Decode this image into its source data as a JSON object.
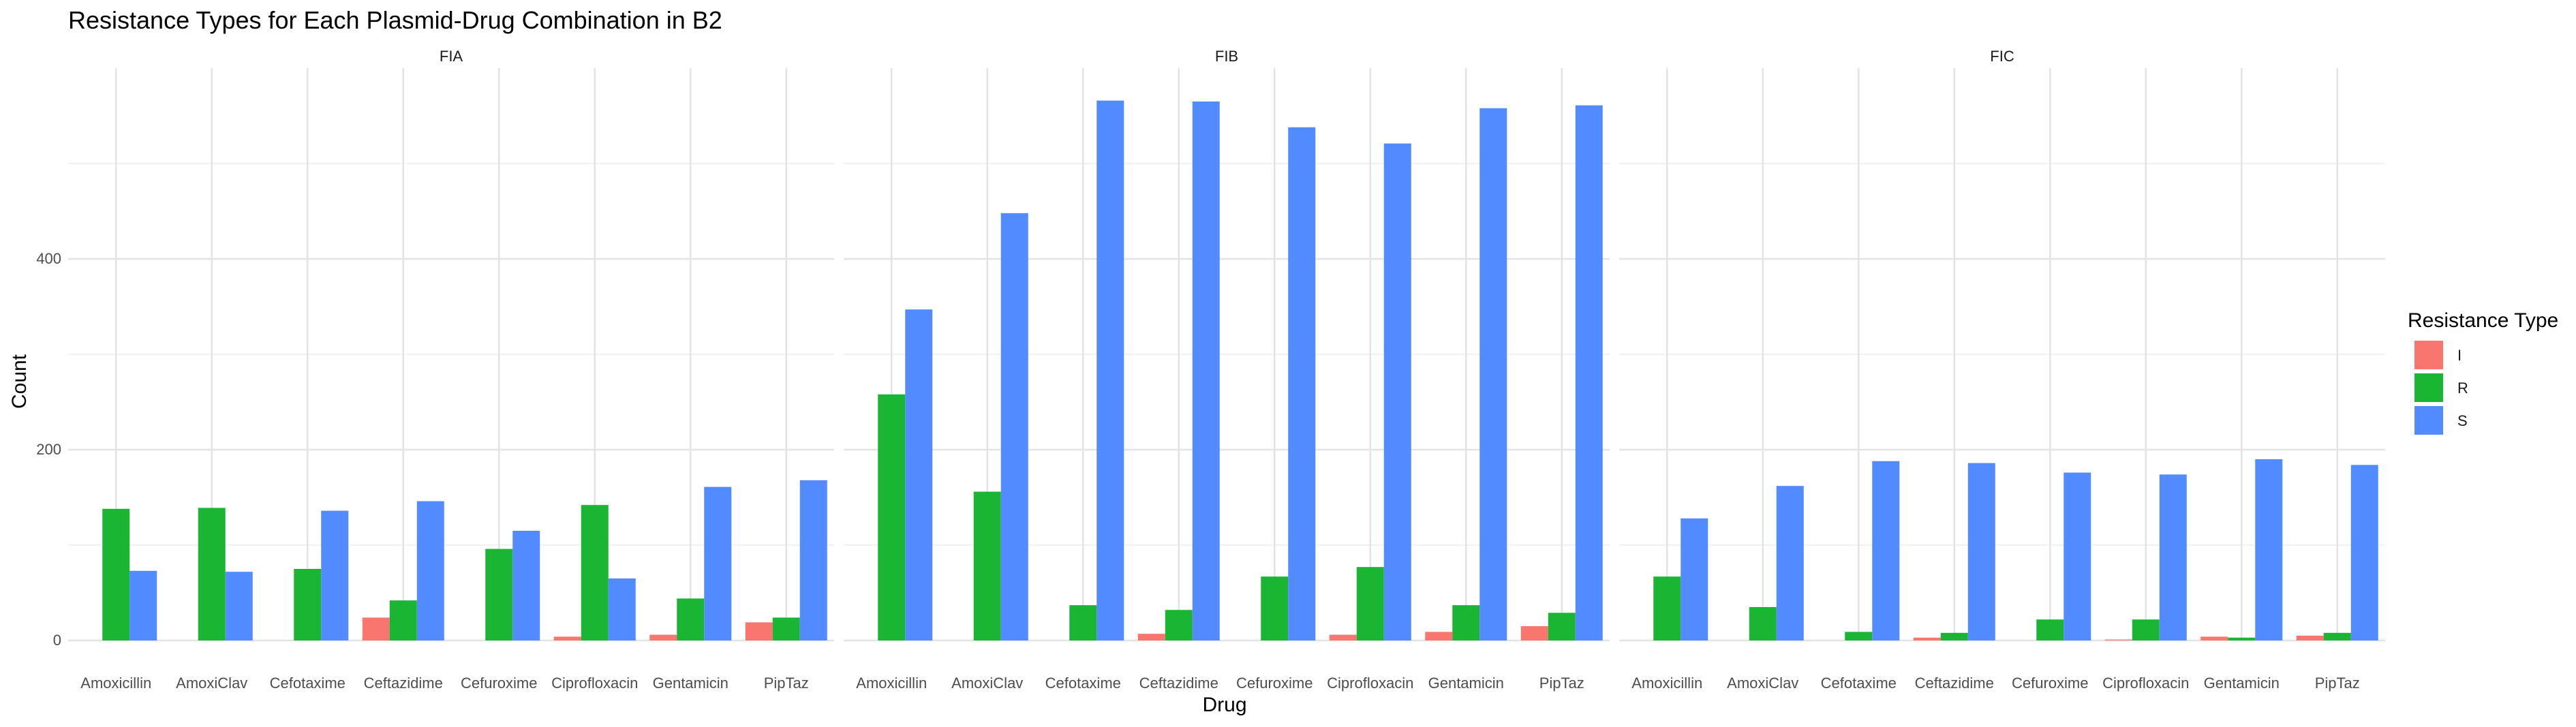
{
  "chart_data": {
    "type": "bar",
    "title": "Resistance Types for Each Plasmid-Drug Combination in B2",
    "xlabel": "Drug",
    "ylabel": "Count",
    "ylim": [
      0,
      600
    ],
    "yticks": [
      0,
      200,
      400
    ],
    "grid": true,
    "legend": {
      "title": "Resistance Type",
      "position": "right",
      "entries": [
        "I",
        "R",
        "S"
      ]
    },
    "categories": [
      "Amoxicillin",
      "AmoxiClav",
      "Cefotaxime",
      "Ceftazidime",
      "Cefuroxime",
      "Ciprofloxacin",
      "Gentamicin",
      "PipTaz"
    ],
    "series_colors": {
      "I": "#F8766D",
      "R": "#1BB534",
      "S": "#528BFF"
    },
    "facets": [
      {
        "name": "FIA",
        "series": [
          {
            "name": "I",
            "values": [
              null,
              null,
              null,
              24,
              null,
              4,
              6,
              19
            ]
          },
          {
            "name": "R",
            "values": [
              138,
              139,
              75,
              42,
              96,
              142,
              44,
              24
            ]
          },
          {
            "name": "S",
            "values": [
              73,
              72,
              136,
              146,
              115,
              65,
              161,
              168
            ]
          }
        ]
      },
      {
        "name": "FIB",
        "series": [
          {
            "name": "I",
            "values": [
              null,
              null,
              null,
              7,
              null,
              6,
              9,
              15
            ]
          },
          {
            "name": "R",
            "values": [
              258,
              156,
              37,
              32,
              67,
              77,
              37,
              29
            ]
          },
          {
            "name": "S",
            "values": [
              347,
              448,
              566,
              565,
              538,
              521,
              558,
              561
            ]
          }
        ]
      },
      {
        "name": "FIC",
        "series": [
          {
            "name": "I",
            "values": [
              null,
              null,
              null,
              3,
              null,
              1,
              4,
              5
            ]
          },
          {
            "name": "R",
            "values": [
              67,
              35,
              9,
              8,
              22,
              22,
              3,
              8
            ]
          },
          {
            "name": "S",
            "values": [
              128,
              162,
              188,
              186,
              176,
              174,
              190,
              184
            ]
          }
        ]
      }
    ]
  }
}
